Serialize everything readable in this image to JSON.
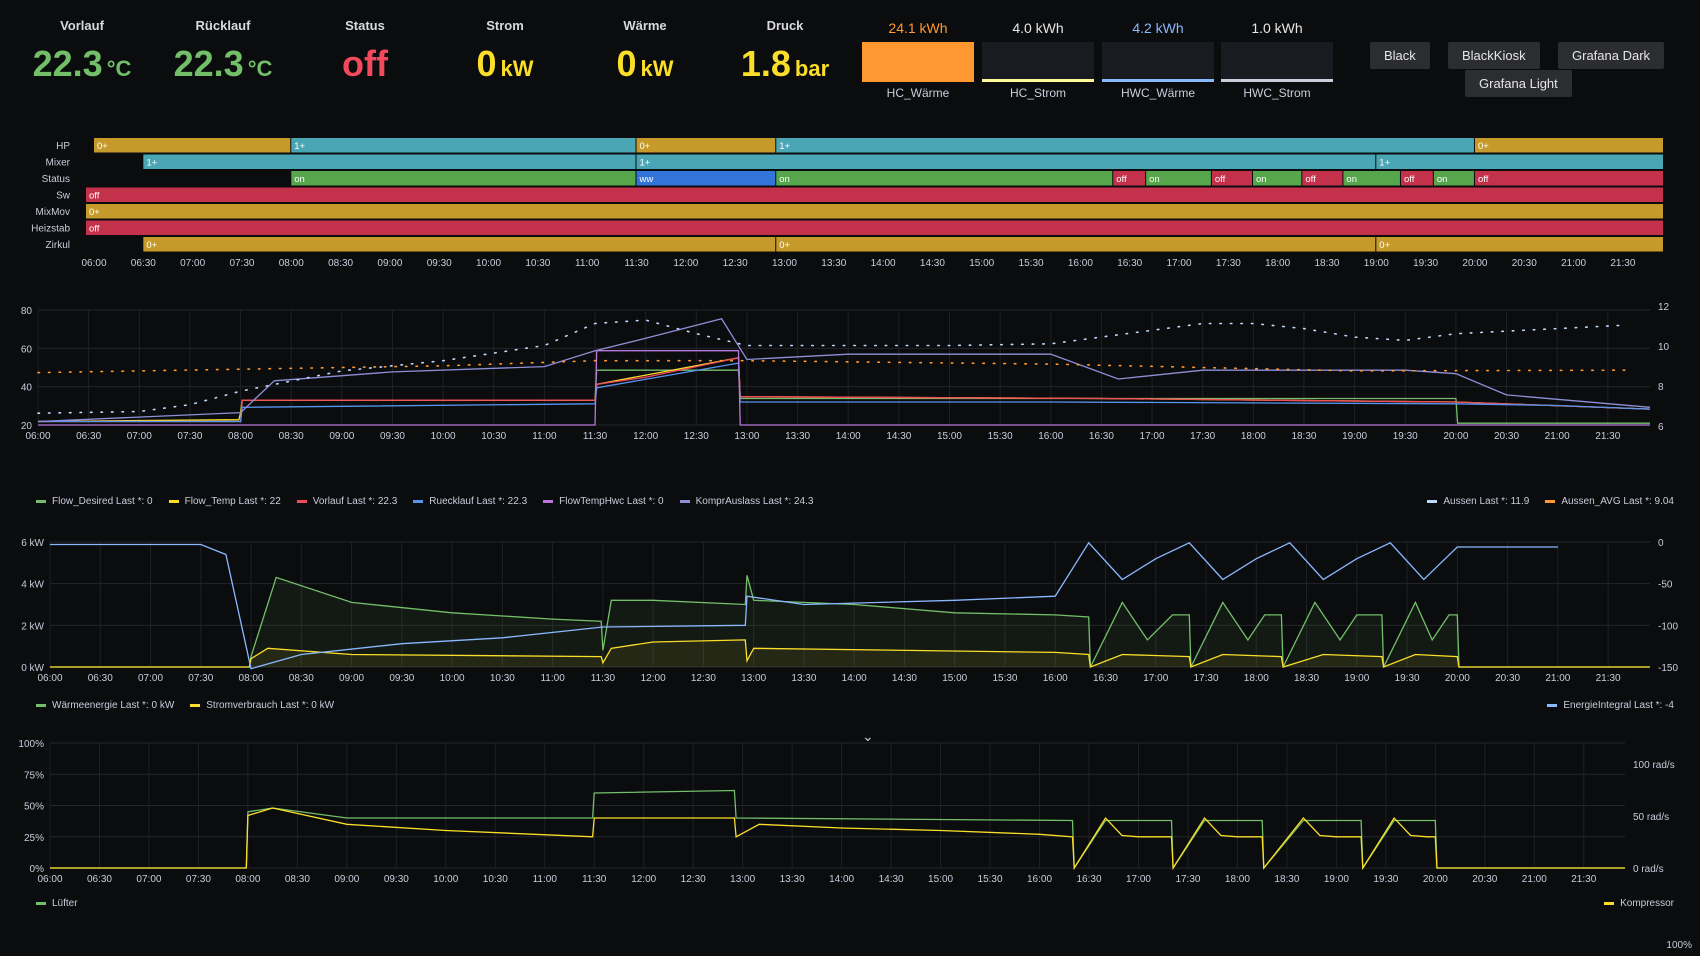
{
  "stats": [
    {
      "label": "Vorlauf",
      "value": "22.3",
      "unit": "°C",
      "color": "#73bf69"
    },
    {
      "label": "Rücklauf",
      "value": "22.3",
      "unit": "°C",
      "color": "#73bf69"
    },
    {
      "label": "Status",
      "value": "off",
      "unit": "",
      "color": "#f2495c"
    },
    {
      "label": "Strom",
      "value": "0",
      "unit": "kW",
      "color": "#fade2a"
    },
    {
      "label": "Wärme",
      "value": "0",
      "unit": "kW",
      "color": "#fade2a"
    },
    {
      "label": "Druck",
      "value": "1.8",
      "unit": "bar",
      "color": "#fade2a"
    }
  ],
  "bar_stats": [
    {
      "value": "24.1 kWh",
      "name": "HC_Wärme",
      "color": "#ff9830",
      "fill": 1.0
    },
    {
      "value": "4.0 kWh",
      "name": "HC_Strom",
      "color": "#fff899",
      "fill": 0.08
    },
    {
      "value": "4.2 kWh",
      "name": "HWC_Wärme",
      "color": "#8ab8ff",
      "fill": 0.08
    },
    {
      "value": "1.0 kWh",
      "name": "HWC_Strom",
      "color": "#ccccdc",
      "fill": 0.02
    }
  ],
  "buttons": [
    "Black",
    "BlackKiosk",
    "Grafana Dark",
    "Grafana Light"
  ],
  "time_labels": [
    "06:00",
    "06:30",
    "07:00",
    "07:30",
    "08:00",
    "08:30",
    "09:00",
    "09:30",
    "10:00",
    "10:30",
    "11:00",
    "11:30",
    "12:00",
    "12:30",
    "13:00",
    "13:30",
    "14:00",
    "14:30",
    "15:00",
    "15:30",
    "16:00",
    "16:30",
    "17:00",
    "17:30",
    "18:00",
    "18:30",
    "19:00",
    "19:30",
    "20:00",
    "20:30",
    "21:00",
    "21:30"
  ],
  "state_timeline": {
    "rows": [
      {
        "name": "HP",
        "segments": [
          {
            "start": "06:00",
            "end": "08:00",
            "label": "0+",
            "color": "#c59a2a"
          },
          {
            "start": "08:00",
            "end": "11:30",
            "label": "1+",
            "color": "#4aa6b5"
          },
          {
            "start": "11:30",
            "end": "12:55",
            "label": "0+",
            "color": "#c59a2a"
          },
          {
            "start": "12:55",
            "end": "20:00",
            "label": "1+",
            "color": "#4aa6b5"
          },
          {
            "start": "20:00",
            "end": "21:55",
            "label": "0+",
            "color": "#c59a2a"
          }
        ]
      },
      {
        "name": "Mixer",
        "segments": [
          {
            "start": "06:30",
            "end": "11:30",
            "label": "1+",
            "color": "#4aa6b5"
          },
          {
            "start": "11:30",
            "end": "19:00",
            "label": "1+",
            "color": "#4aa6b5"
          },
          {
            "start": "19:00",
            "end": "21:55",
            "label": "1+",
            "color": "#4aa6b5"
          }
        ]
      },
      {
        "name": "Status",
        "segments": [
          {
            "start": "08:00",
            "end": "11:30",
            "label": "on",
            "color": "#56a64b"
          },
          {
            "start": "11:30",
            "end": "12:55",
            "label": "ww",
            "color": "#3274d9"
          },
          {
            "start": "12:55",
            "end": "16:20",
            "label": "on",
            "color": "#56a64b"
          },
          {
            "start": "16:20",
            "end": "16:40",
            "label": "off",
            "color": "#c4314b"
          },
          {
            "start": "16:40",
            "end": "17:20",
            "label": "on",
            "color": "#56a64b"
          },
          {
            "start": "17:20",
            "end": "17:45",
            "label": "off",
            "color": "#c4314b"
          },
          {
            "start": "17:45",
            "end": "18:15",
            "label": "on",
            "color": "#56a64b"
          },
          {
            "start": "18:15",
            "end": "18:40",
            "label": "off",
            "color": "#c4314b"
          },
          {
            "start": "18:40",
            "end": "19:15",
            "label": "on",
            "color": "#56a64b"
          },
          {
            "start": "19:15",
            "end": "19:35",
            "label": "off",
            "color": "#c4314b"
          },
          {
            "start": "19:35",
            "end": "20:00",
            "label": "on",
            "color": "#56a64b"
          },
          {
            "start": "20:00",
            "end": "21:55",
            "label": "off",
            "color": "#c4314b"
          }
        ]
      },
      {
        "name": "Sw",
        "segments": [
          {
            "start": "05:55",
            "end": "21:55",
            "label": "off",
            "color": "#c4314b"
          }
        ]
      },
      {
        "name": "MixMov",
        "segments": [
          {
            "start": "05:55",
            "end": "21:55",
            "label": "0+",
            "color": "#c59a2a"
          }
        ]
      },
      {
        "name": "Heizstab",
        "segments": [
          {
            "start": "05:55",
            "end": "21:55",
            "label": "off",
            "color": "#c4314b"
          }
        ]
      },
      {
        "name": "Zirkul",
        "segments": [
          {
            "start": "06:30",
            "end": "12:55",
            "label": "0+",
            "color": "#c59a2a"
          },
          {
            "start": "12:55",
            "end": "19:00",
            "label": "0+",
            "color": "#c59a2a"
          },
          {
            "start": "19:00",
            "end": "21:55",
            "label": "0+",
            "color": "#c59a2a"
          }
        ]
      }
    ]
  },
  "chart_data": [
    {
      "type": "line",
      "y_ticks_left": [
        "80",
        "60",
        "40",
        "20"
      ],
      "y_ticks_right": [
        "12",
        "10",
        "8",
        "6"
      ],
      "ylim_left": [
        15,
        80
      ],
      "ylim_right": [
        5.8,
        12.6
      ],
      "series": [
        {
          "name": "Flow_Desired",
          "legend": "Flow_Desired   Last *: 0",
          "color": "#73bf69",
          "axis": "left",
          "x": [
            "06:00",
            "08:00",
            "08:01",
            "11:30",
            "11:31",
            "12:55",
            "12:56",
            "20:00",
            "20:01",
            "21:55"
          ],
          "y": [
            17,
            17,
            29,
            29,
            46,
            46,
            30,
            30,
            16,
            16
          ]
        },
        {
          "name": "Flow_Temp",
          "legend": "Flow_Temp   Last *: 22",
          "color": "#fade2a",
          "axis": "left",
          "x": [
            "06:00",
            "07:59",
            "08:00",
            "08:01",
            "11:30",
            "11:31",
            "12:55",
            "12:56",
            "16:30",
            "20:00",
            "21:55"
          ],
          "y": [
            17,
            18,
            22,
            29,
            29,
            38,
            53,
            31,
            30,
            28,
            24
          ]
        },
        {
          "name": "Vorlauf",
          "legend": "Vorlauf   Last *: 22.3",
          "color": "#f2495c",
          "axis": "left",
          "x": [
            "06:00",
            "08:00",
            "08:01",
            "11:30",
            "11:31",
            "12:00",
            "12:30",
            "12:55",
            "12:56",
            "16:30",
            "20:00",
            "21:55"
          ],
          "y": [
            17,
            17,
            29,
            29,
            38,
            42,
            48,
            53,
            31,
            30,
            28,
            24
          ]
        },
        {
          "name": "Ruecklauf",
          "legend": "Ruecklauf   Last *: 22.3",
          "color": "#5794f2",
          "axis": "left",
          "x": [
            "06:00",
            "08:00",
            "08:01",
            "11:30",
            "11:31",
            "12:55",
            "12:56",
            "16:00",
            "20:00",
            "21:00",
            "21:55"
          ],
          "y": [
            17,
            17,
            25,
            27,
            36,
            50,
            28,
            28,
            27,
            26,
            24
          ]
        },
        {
          "name": "FlowTempHwc",
          "legend": "FlowTempHwc   Last *: 0",
          "color": "#b877d9",
          "axis": "left",
          "x": [
            "06:00",
            "11:30",
            "11:31",
            "12:55",
            "12:56",
            "21:55"
          ],
          "y": [
            15,
            15,
            57,
            57,
            15,
            15
          ]
        },
        {
          "name": "KomprAuslass",
          "legend": "KomprAuslass   Last *: 24.3",
          "color": "#8f8fd8",
          "axis": "left",
          "x": [
            "06:00",
            "08:00",
            "08:20",
            "09:30",
            "11:00",
            "11:30",
            "12:00",
            "12:45",
            "13:00",
            "14:00",
            "16:00",
            "16:40",
            "17:30",
            "18:30",
            "19:30",
            "20:00",
            "20:30",
            "21:55"
          ],
          "y": [
            17,
            22,
            40,
            45,
            48,
            57,
            64,
            75,
            52,
            55,
            55,
            41,
            46,
            46,
            46,
            44,
            32,
            25
          ]
        },
        {
          "name": "Aussen",
          "legend": "Aussen   Last *: 11.9",
          "color": "#c0d8ff",
          "axis": "right",
          "dotted": true,
          "x": [
            "06:00",
            "07:00",
            "07:30",
            "08:00",
            "09:00",
            "10:00",
            "11:00",
            "11:30",
            "12:00",
            "12:30",
            "13:00",
            "14:00",
            "15:00",
            "16:00",
            "17:00",
            "17:30",
            "18:00",
            "18:30",
            "19:00",
            "19:30",
            "20:00",
            "21:00",
            "21:40"
          ],
          "y": [
            6.5,
            6.6,
            7.0,
            7.8,
            9.0,
            9.6,
            10.5,
            11.8,
            12.0,
            11.2,
            10.5,
            10.5,
            10.5,
            10.6,
            11.4,
            11.8,
            11.8,
            11.5,
            11.0,
            10.8,
            11.2,
            11.5,
            11.7
          ]
        },
        {
          "name": "Aussen_AVG",
          "legend": "Aussen_AVG   Last *: 9.04",
          "color": "#ff9830",
          "axis": "right",
          "dotted": true,
          "x": [
            "06:00",
            "10:00",
            "11:30",
            "13:00",
            "16:00",
            "19:00",
            "21:40"
          ],
          "y": [
            8.9,
            9.3,
            9.6,
            9.6,
            9.4,
            9.0,
            9.04
          ]
        }
      ]
    },
    {
      "type": "area",
      "y_ticks_left": [
        "6 kW",
        "4 kW",
        "2 kW",
        "0 kW"
      ],
      "y_ticks_right": [
        "0",
        "-50",
        "-100",
        "-150"
      ],
      "ylim_left": [
        0,
        6
      ],
      "ylim_right": [
        -150,
        0
      ],
      "series": [
        {
          "name": "Wärmeenergie",
          "legend": "Wärmeenergie   Last *: 0 kW",
          "color": "#73bf69",
          "axis": "left",
          "fill": true,
          "x": [
            "06:00",
            "07:59",
            "08:00",
            "08:15",
            "09:00",
            "10:00",
            "11:00",
            "11:29",
            "11:30",
            "11:35",
            "12:00",
            "12:55",
            "12:56",
            "13:00",
            "14:00",
            "15:00",
            "16:00",
            "16:20",
            "16:21",
            "16:40",
            "16:55",
            "17:10",
            "17:20",
            "17:21",
            "17:40",
            "17:55",
            "18:05",
            "18:15",
            "18:16",
            "18:35",
            "18:50",
            "19:00",
            "19:15",
            "19:16",
            "19:35",
            "19:45",
            "19:55",
            "20:00",
            "20:01",
            "21:55"
          ],
          "y": [
            0,
            0,
            0.5,
            4.3,
            3.1,
            2.6,
            2.3,
            2.2,
            0.8,
            3.2,
            3.2,
            3.0,
            4.4,
            3.2,
            3.0,
            2.6,
            2.5,
            2.4,
            0,
            3.1,
            1.3,
            2.5,
            2.5,
            0,
            3.1,
            1.3,
            2.5,
            2.5,
            0,
            3.1,
            1.3,
            2.5,
            2.5,
            0,
            3.1,
            1.3,
            2.5,
            2.5,
            0,
            0
          ]
        },
        {
          "name": "Stromverbrauch",
          "legend": "Stromverbrauch   Last *: 0 kW",
          "color": "#fade2a",
          "axis": "left",
          "fill": true,
          "x": [
            "06:00",
            "07:59",
            "08:00",
            "08:10",
            "09:00",
            "11:29",
            "11:30",
            "11:35",
            "12:00",
            "12:55",
            "12:56",
            "13:00",
            "16:00",
            "16:20",
            "16:21",
            "16:40",
            "17:20",
            "17:21",
            "17:40",
            "18:15",
            "18:16",
            "18:40",
            "19:15",
            "19:16",
            "19:35",
            "20:00",
            "20:01",
            "21:55"
          ],
          "y": [
            0,
            0,
            0.4,
            0.9,
            0.6,
            0.5,
            0.2,
            0.9,
            1.2,
            1.3,
            0.3,
            0.9,
            0.7,
            0.6,
            0,
            0.6,
            0.5,
            0,
            0.6,
            0.5,
            0,
            0.6,
            0.5,
            0,
            0.6,
            0.5,
            0,
            0
          ]
        },
        {
          "name": "EnergieIntegral",
          "legend": "EnergieIntegral   Last *: -4",
          "color": "#8ab8ff",
          "axis": "right",
          "x": [
            "06:00",
            "07:30",
            "07:45",
            "08:00",
            "08:30",
            "09:30",
            "10:30",
            "11:30",
            "12:55",
            "12:56",
            "13:30",
            "15:00",
            "16:00",
            "16:20",
            "16:40",
            "17:00",
            "17:20",
            "17:40",
            "18:00",
            "18:20",
            "18:40",
            "19:00",
            "19:20",
            "19:40",
            "20:00",
            "21:00"
          ],
          "y": [
            -3,
            -3,
            -15,
            -152,
            -135,
            -122,
            -115,
            -102,
            -100,
            -65,
            -75,
            -70,
            -65,
            -1,
            -45,
            -20,
            -1,
            -45,
            -20,
            -1,
            -45,
            -20,
            -1,
            -45,
            -6,
            -6
          ]
        }
      ]
    },
    {
      "type": "line",
      "y_ticks_left": [
        "100%",
        "75%",
        "50%",
        "25%",
        "0%"
      ],
      "y_ticks_right": [
        "100 rad/s",
        "50 rad/s",
        "0 rad/s"
      ],
      "ylim_left": [
        0,
        100
      ],
      "series": [
        {
          "name": "Lüfter",
          "legend": "Lüfter",
          "color": "#73bf69",
          "axis": "left",
          "x": [
            "06:00",
            "07:59",
            "08:00",
            "08:15",
            "09:00",
            "11:29",
            "11:30",
            "12:55",
            "12:56",
            "16:20",
            "16:21",
            "16:40",
            "17:20",
            "17:21",
            "17:40",
            "18:15",
            "18:16",
            "18:40",
            "19:15",
            "19:16",
            "19:35",
            "20:00",
            "20:01",
            "21:55"
          ],
          "y": [
            0,
            0,
            45,
            48,
            40,
            40,
            60,
            62,
            40,
            38,
            0,
            38,
            38,
            0,
            38,
            38,
            0,
            38,
            38,
            0,
            38,
            38,
            0,
            0
          ]
        },
        {
          "name": "Kompressor",
          "legend": "Kompressor",
          "color": "#fade2a",
          "axis": "left",
          "x": [
            "06:00",
            "07:59",
            "08:00",
            "08:15",
            "09:00",
            "10:00",
            "11:29",
            "11:30",
            "12:55",
            "12:56",
            "13:10",
            "14:00",
            "15:00",
            "16:00",
            "16:20",
            "16:21",
            "16:40",
            "16:50",
            "17:00",
            "17:20",
            "17:21",
            "17:40",
            "17:50",
            "18:00",
            "18:15",
            "18:16",
            "18:40",
            "18:50",
            "19:00",
            "19:15",
            "19:16",
            "19:35",
            "19:45",
            "19:55",
            "20:00",
            "20:01",
            "21:55"
          ],
          "y": [
            0,
            0,
            42,
            48,
            35,
            30,
            25,
            40,
            40,
            25,
            35,
            32,
            30,
            27,
            25,
            0,
            40,
            26,
            25,
            25,
            0,
            40,
            26,
            25,
            25,
            0,
            40,
            26,
            25,
            25,
            0,
            40,
            26,
            25,
            25,
            0,
            0
          ]
        }
      ]
    }
  ],
  "chevron": "⌄",
  "bottom_right": "100%"
}
